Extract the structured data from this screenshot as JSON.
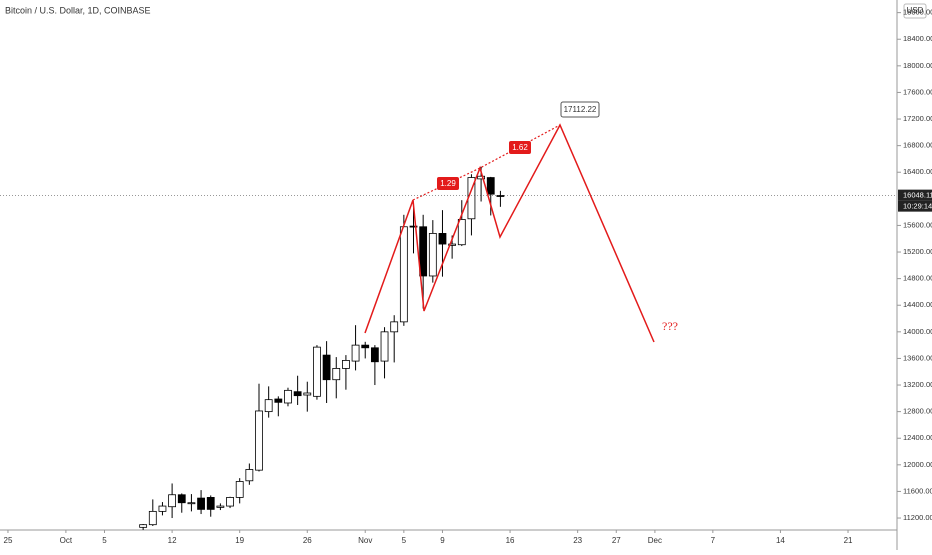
{
  "chart_data": {
    "type": "candlestick",
    "title": "Bitcoin / U.S. Dollar, 1D, COINBASE",
    "currency": "USD",
    "x": [
      "10-09",
      "10-10",
      "10-11",
      "10-12",
      "10-13",
      "10-14",
      "10-15",
      "10-16",
      "10-17",
      "10-18",
      "10-19",
      "10-20",
      "10-21",
      "10-22",
      "10-23",
      "10-24",
      "10-25",
      "10-26",
      "10-27",
      "10-28",
      "10-29",
      "10-30",
      "10-31",
      "11-01",
      "11-02",
      "11-03",
      "11-04",
      "11-05",
      "11-06",
      "11-07",
      "11-08",
      "11-09",
      "11-10",
      "11-11",
      "11-12",
      "11-13",
      "11-14",
      "11-15"
    ],
    "open": [
      11060,
      11100,
      11300,
      11370,
      11550,
      11420,
      11500,
      11510,
      11360,
      11380,
      11510,
      11760,
      11920,
      12800,
      12990,
      12930,
      13100,
      13050,
      13030,
      13650,
      13280,
      13450,
      13560,
      13800,
      13760,
      13560,
      14000,
      14150,
      15590,
      15580,
      14840,
      15480,
      15300,
      15310,
      15700,
      16300,
      16320,
      16050
    ],
    "high": [
      11110,
      11480,
      11440,
      11720,
      11570,
      11560,
      11620,
      11540,
      11420,
      11520,
      11800,
      12020,
      13220,
      13180,
      13030,
      13160,
      13340,
      13250,
      13800,
      13860,
      13620,
      13650,
      14100,
      13850,
      13800,
      14070,
      14250,
      15760,
      15960,
      15760,
      15680,
      15830,
      15450,
      15980,
      16370,
      16480,
      16330,
      16120
    ],
    "low": [
      10980,
      11080,
      11240,
      11200,
      11280,
      11300,
      11260,
      11220,
      11320,
      11350,
      11420,
      11700,
      11900,
      12710,
      12730,
      12880,
      12900,
      12800,
      12980,
      12930,
      13000,
      13130,
      13420,
      13600,
      13200,
      13300,
      13540,
      14090,
      15180,
      14350,
      14740,
      14830,
      15100,
      15290,
      15450,
      15960,
      15750,
      15880
    ],
    "close": [
      11100,
      11300,
      11380,
      11550,
      11430,
      11430,
      11330,
      11330,
      11380,
      11510,
      11750,
      11930,
      12810,
      12980,
      12940,
      13120,
      13040,
      13080,
      13770,
      13280,
      13450,
      13570,
      13800,
      13760,
      13550,
      14000,
      14150,
      15580,
      15580,
      14840,
      15480,
      15320,
      15320,
      15690,
      16320,
      16340,
      16070,
      16048.11
    ],
    "up_color": "#ffffff",
    "down_color": "#000000",
    "xlim": [
      "09-24",
      "12-26"
    ],
    "xticks": [
      {
        "value": "09-25",
        "label": "25"
      },
      {
        "value": "10-01",
        "label": "Oct"
      },
      {
        "value": "10-05",
        "label": "5"
      },
      {
        "value": "10-12",
        "label": "12"
      },
      {
        "value": "10-19",
        "label": "19"
      },
      {
        "value": "10-26",
        "label": "26"
      },
      {
        "value": "11-01",
        "label": "Nov"
      },
      {
        "value": "11-05",
        "label": "5"
      },
      {
        "value": "11-09",
        "label": "9"
      },
      {
        "value": "11-16",
        "label": "16"
      },
      {
        "value": "11-23",
        "label": "23"
      },
      {
        "value": "11-27",
        "label": "27"
      },
      {
        "value": "12-01",
        "label": "Dec"
      },
      {
        "value": "12-07",
        "label": "7"
      },
      {
        "value": "12-14",
        "label": "14"
      },
      {
        "value": "12-21",
        "label": "21"
      }
    ],
    "ylim": [
      11020,
      18990
    ],
    "yticks": [
      {
        "value": 11200,
        "label": "11200.00"
      },
      {
        "value": 11600,
        "label": "11600.00"
      },
      {
        "value": 12000,
        "label": "12000.00"
      },
      {
        "value": 12400,
        "label": "12400.00"
      },
      {
        "value": 12800,
        "label": "12800.00"
      },
      {
        "value": 13200,
        "label": "13200.00"
      },
      {
        "value": 13600,
        "label": "13600.00"
      },
      {
        "value": 14000,
        "label": "14000.00"
      },
      {
        "value": 14400,
        "label": "14400.00"
      },
      {
        "value": 14800,
        "label": "14800.00"
      },
      {
        "value": 15200,
        "label": "15200.00"
      },
      {
        "value": 15600,
        "label": "15600.00"
      },
      {
        "value": 16400,
        "label": "16400.00"
      },
      {
        "value": 16800,
        "label": "16800.00"
      },
      {
        "value": 17200,
        "label": "17200.00"
      },
      {
        "value": 17600,
        "label": "17600.00"
      },
      {
        "value": 18000,
        "label": "18000.00"
      },
      {
        "value": 18400,
        "label": "18400.00"
      },
      {
        "value": 18800,
        "label": "18800.00"
      }
    ],
    "grid": false,
    "last_price": 16048.11,
    "countdown": "10:29:14",
    "annotations": {
      "ratio_1": "1.29",
      "ratio_2": "1.62",
      "target": 17112.22,
      "question": "???"
    }
  }
}
